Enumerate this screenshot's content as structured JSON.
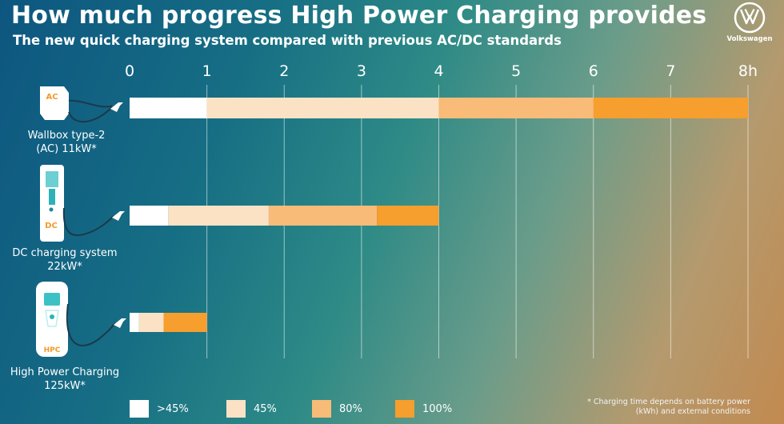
{
  "header": {
    "title": "How much progress High Power Charging provides",
    "subtitle": "The new quick charging system compared with previous AC/DC standards",
    "logo_text": "Volkswagen"
  },
  "chart_data": {
    "type": "bar",
    "orientation": "horizontal",
    "stacked": true,
    "title": "How much progress High Power Charging provides",
    "subtitle": "The new quick charging system compared with previous AC/DC standards",
    "xlabel": "",
    "ylabel": "",
    "xlim": [
      0,
      8
    ],
    "x_ticks": [
      "0",
      "1",
      "2",
      "3",
      "4",
      "5",
      "6",
      "7",
      "8h"
    ],
    "grid": true,
    "legend_position": "bottom",
    "categories": [
      {
        "label_line1": "Wallbox type-2",
        "label_line2": "(AC) 11kW*",
        "station_label": "AC"
      },
      {
        "label_line1": "DC charging system",
        "label_line2": "22kW*",
        "station_label": "DC"
      },
      {
        "label_line1": "High Power Charging",
        "label_line2": "125kW*",
        "station_label": "HPC"
      }
    ],
    "series": [
      {
        "name": ">45%",
        "color": "#ffffff",
        "values": [
          1.0,
          0.5,
          0.12
        ]
      },
      {
        "name": "45%",
        "color": "#fbe2c4",
        "values": [
          3.0,
          1.3,
          0.32
        ]
      },
      {
        "name": "80%",
        "color": "#f8bb78",
        "values": [
          2.0,
          1.4,
          0.0
        ]
      },
      {
        "name": "100%",
        "color": "#f69e2e",
        "values": [
          2.0,
          0.8,
          0.56
        ]
      }
    ],
    "footnote": "* Charging time depends on battery power (kWh) and external conditions"
  }
}
